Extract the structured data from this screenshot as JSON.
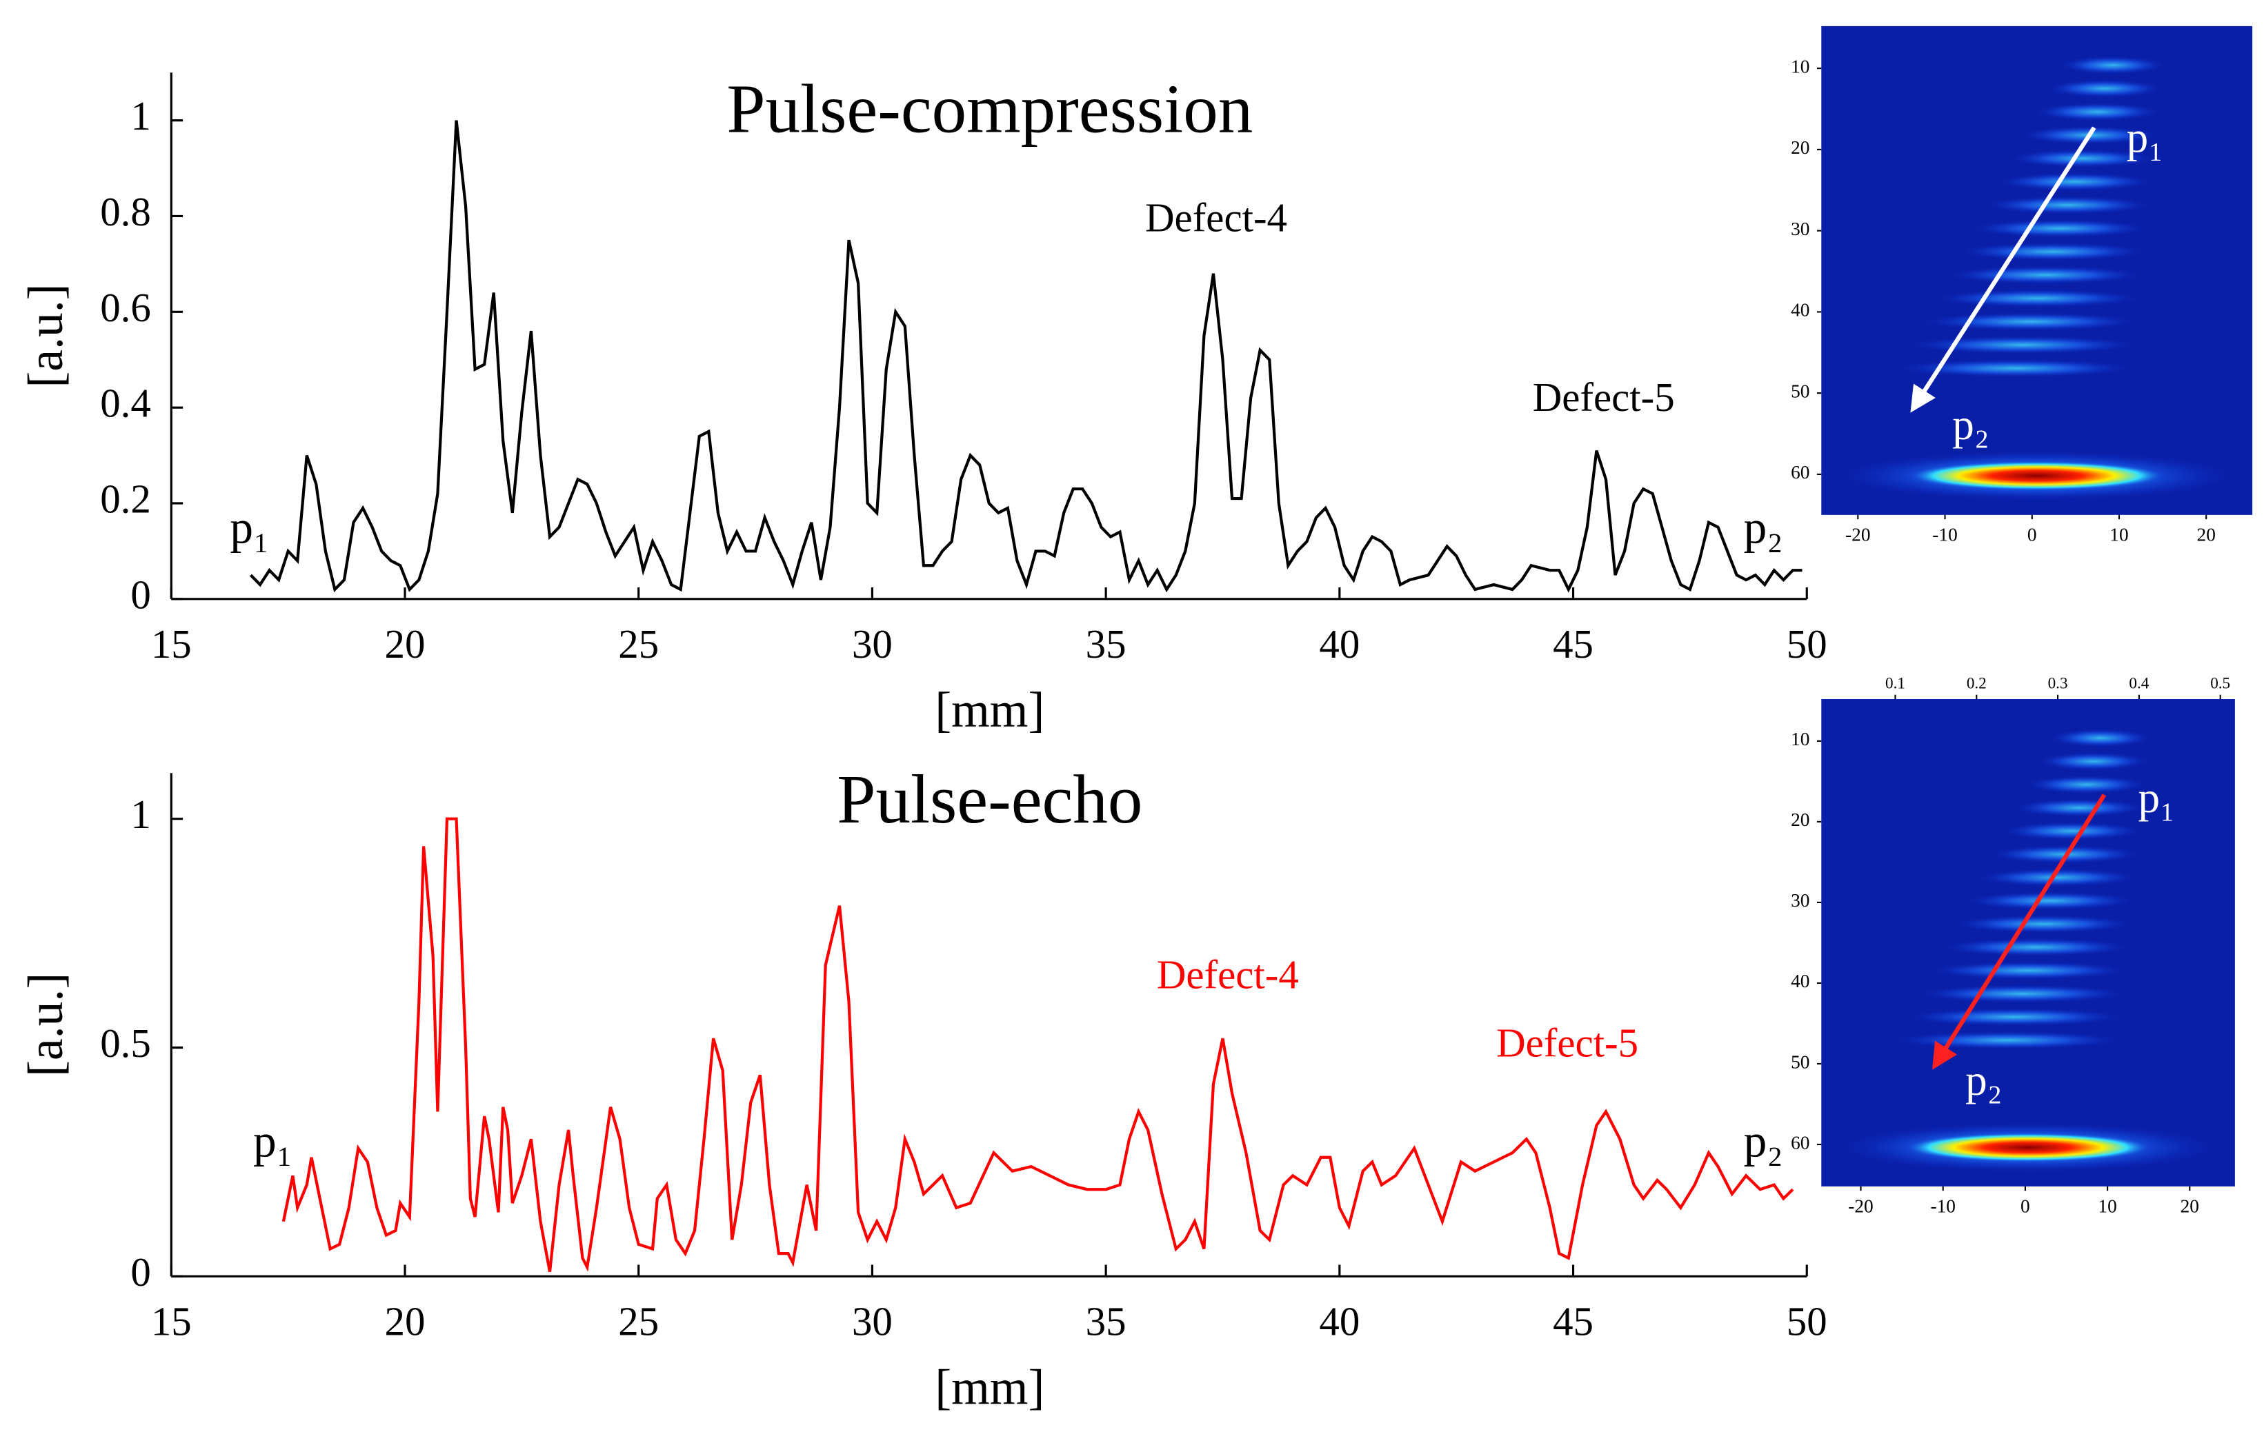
{
  "chart_data": [
    {
      "type": "line",
      "title": "Pulse-compression",
      "x_label": "[mm]",
      "y_label": "[a.u.]",
      "color": "#000000",
      "xlim": [
        15,
        50
      ],
      "xticks": [
        15,
        20,
        25,
        30,
        35,
        40,
        45,
        50
      ],
      "ylim": [
        0,
        1.1
      ],
      "yticks": [
        0,
        0.2,
        0.4,
        0.6,
        0.8,
        1
      ],
      "annotations": [
        "Defect-4",
        "Defect-5",
        "p₁",
        "p₂"
      ],
      "x": [
        16.7,
        16.9,
        17.1,
        17.3,
        17.5,
        17.7,
        17.9,
        18.1,
        18.3,
        18.5,
        18.7,
        18.9,
        19.1,
        19.3,
        19.5,
        19.7,
        19.9,
        20.1,
        20.3,
        20.5,
        20.7,
        20.9,
        21.1,
        21.3,
        21.5,
        21.7,
        21.9,
        22.1,
        22.3,
        22.5,
        22.7,
        22.9,
        23.1,
        23.3,
        23.5,
        23.7,
        23.9,
        24.1,
        24.3,
        24.5,
        24.7,
        24.9,
        25.1,
        25.3,
        25.5,
        25.7,
        25.9,
        26.1,
        26.3,
        26.5,
        26.7,
        26.9,
        27.1,
        27.3,
        27.5,
        27.7,
        27.9,
        28.1,
        28.3,
        28.5,
        28.7,
        28.9,
        29.1,
        29.3,
        29.5,
        29.7,
        29.9,
        30.1,
        30.3,
        30.5,
        30.7,
        30.9,
        31.1,
        31.3,
        31.5,
        31.7,
        31.9,
        32.1,
        32.3,
        32.5,
        32.7,
        32.9,
        33.1,
        33.3,
        33.5,
        33.7,
        33.9,
        34.1,
        34.3,
        34.5,
        34.7,
        34.9,
        35.1,
        35.3,
        35.5,
        35.7,
        35.9,
        36.1,
        36.3,
        36.5,
        36.7,
        36.9,
        37.1,
        37.3,
        37.5,
        37.7,
        37.9,
        38.1,
        38.3,
        38.5,
        38.7,
        38.9,
        39.1,
        39.3,
        39.5,
        39.7,
        39.9,
        40.1,
        40.3,
        40.5,
        40.7,
        40.9,
        41.1,
        41.3,
        41.5,
        41.9,
        42.1,
        42.3,
        42.5,
        42.7,
        42.9,
        43.3,
        43.7,
        43.9,
        44.1,
        44.5,
        44.7,
        44.9,
        45.1,
        45.3,
        45.5,
        45.7,
        45.9,
        46.1,
        46.3,
        46.5,
        46.7,
        46.9,
        47.1,
        47.3,
        47.5,
        47.7,
        47.9,
        48.1,
        48.3,
        48.5,
        48.7,
        48.9,
        49.1,
        49.3,
        49.5,
        49.7,
        49.9
      ],
      "values": [
        0.05,
        0.03,
        0.06,
        0.04,
        0.1,
        0.08,
        0.3,
        0.24,
        0.1,
        0.02,
        0.04,
        0.16,
        0.19,
        0.15,
        0.1,
        0.08,
        0.07,
        0.02,
        0.04,
        0.1,
        0.22,
        0.6,
        1.0,
        0.82,
        0.48,
        0.49,
        0.64,
        0.33,
        0.18,
        0.39,
        0.56,
        0.3,
        0.13,
        0.15,
        0.2,
        0.25,
        0.24,
        0.2,
        0.14,
        0.09,
        0.12,
        0.15,
        0.06,
        0.12,
        0.08,
        0.03,
        0.02,
        0.18,
        0.34,
        0.35,
        0.18,
        0.1,
        0.14,
        0.1,
        0.1,
        0.17,
        0.12,
        0.08,
        0.03,
        0.1,
        0.16,
        0.04,
        0.15,
        0.4,
        0.75,
        0.66,
        0.2,
        0.18,
        0.48,
        0.6,
        0.57,
        0.3,
        0.07,
        0.07,
        0.1,
        0.12,
        0.25,
        0.3,
        0.28,
        0.2,
        0.18,
        0.19,
        0.08,
        0.03,
        0.1,
        0.1,
        0.09,
        0.18,
        0.23,
        0.23,
        0.2,
        0.15,
        0.13,
        0.14,
        0.04,
        0.08,
        0.03,
        0.06,
        0.02,
        0.05,
        0.1,
        0.2,
        0.55,
        0.68,
        0.5,
        0.21,
        0.21,
        0.42,
        0.52,
        0.5,
        0.2,
        0.07,
        0.1,
        0.12,
        0.17,
        0.19,
        0.15,
        0.07,
        0.04,
        0.1,
        0.13,
        0.12,
        0.1,
        0.03,
        0.04,
        0.05,
        0.08,
        0.11,
        0.09,
        0.05,
        0.02,
        0.03,
        0.02,
        0.04,
        0.07,
        0.06,
        0.06,
        0.02,
        0.06,
        0.15,
        0.31,
        0.25,
        0.05,
        0.1,
        0.2,
        0.23,
        0.22,
        0.15,
        0.08,
        0.03,
        0.02,
        0.08,
        0.16,
        0.15,
        0.1,
        0.05,
        0.04,
        0.05,
        0.03,
        0.06,
        0.04,
        0.06,
        0.06
      ],
      "inset": {
        "xlim": [
          -24.2,
          25.3
        ],
        "ylim": [
          4.8,
          65
        ],
        "xticks": [
          -20,
          -10,
          0,
          10,
          20
        ],
        "yticks": [
          10,
          20,
          30,
          40,
          50,
          60
        ],
        "labels": [
          "p₁",
          "p₂"
        ],
        "arrow_color": "#ffffff"
      }
    },
    {
      "type": "line",
      "title": "Pulse-echo",
      "x_label": "[mm]",
      "y_label": "[a.u.]",
      "color": "#ff0000",
      "xlim": [
        15,
        50
      ],
      "xticks": [
        15,
        20,
        25,
        30,
        35,
        40,
        45,
        50
      ],
      "ylim": [
        0,
        1.1
      ],
      "yticks": [
        0,
        0.5,
        1
      ],
      "annotations": [
        "Defect-4",
        "Defect-5",
        "p₁",
        "p₂"
      ],
      "x": [
        17.4,
        17.6,
        17.7,
        17.9,
        18,
        18.2,
        18.4,
        18.6,
        18.8,
        19,
        19.2,
        19.4,
        19.6,
        19.8,
        19.9,
        20.1,
        20.3,
        20.4,
        20.6,
        20.7,
        20.9,
        21.1,
        21.3,
        21.4,
        21.5,
        21.7,
        21.8,
        22,
        22.1,
        22.2,
        22.3,
        22.5,
        22.7,
        22.9,
        23.1,
        23.3,
        23.5,
        23.6,
        23.8,
        23.9,
        24.1,
        24.4,
        24.6,
        24.8,
        25,
        25.3,
        25.4,
        25.6,
        25.8,
        26,
        26.2,
        26.4,
        26.6,
        26.8,
        27,
        27.2,
        27.4,
        27.6,
        27.8,
        28,
        28.2,
        28.3,
        28.6,
        28.8,
        29,
        29.3,
        29.5,
        29.7,
        29.9,
        30.1,
        30.3,
        30.5,
        30.7,
        30.9,
        31.1,
        31.5,
        31.8,
        32.1,
        32.6,
        33,
        33.4,
        33.8,
        34.2,
        34.6,
        35,
        35.3,
        35.5,
        35.7,
        35.9,
        36.2,
        36.5,
        36.7,
        36.9,
        37.1,
        37.3,
        37.5,
        37.7,
        38,
        38.3,
        38.5,
        38.8,
        39,
        39.3,
        39.6,
        39.8,
        40,
        40.2,
        40.5,
        40.7,
        40.9,
        41.2,
        41.6,
        41.9,
        42.2,
        42.6,
        42.9,
        43.3,
        43.7,
        44,
        44.2,
        44.5,
        44.7,
        44.9,
        45.2,
        45.5,
        45.7,
        46,
        46.3,
        46.5,
        46.8,
        47,
        47.3,
        47.6,
        47.9,
        48.1,
        48.4,
        48.7,
        49,
        49.3,
        49.5,
        49.7
      ],
      "values": [
        0.12,
        0.22,
        0.15,
        0.2,
        0.26,
        0.16,
        0.06,
        0.07,
        0.15,
        0.28,
        0.25,
        0.15,
        0.09,
        0.1,
        0.16,
        0.13,
        0.6,
        0.94,
        0.7,
        0.36,
        1.0,
        1.0,
        0.5,
        0.17,
        0.13,
        0.35,
        0.3,
        0.14,
        0.37,
        0.32,
        0.16,
        0.22,
        0.3,
        0.12,
        0.01,
        0.2,
        0.32,
        0.22,
        0.04,
        0.02,
        0.15,
        0.37,
        0.3,
        0.15,
        0.07,
        0.06,
        0.17,
        0.2,
        0.08,
        0.05,
        0.1,
        0.3,
        0.52,
        0.45,
        0.08,
        0.2,
        0.38,
        0.44,
        0.2,
        0.05,
        0.05,
        0.03,
        0.2,
        0.1,
        0.68,
        0.81,
        0.6,
        0.14,
        0.08,
        0.12,
        0.08,
        0.15,
        0.3,
        0.25,
        0.18,
        0.22,
        0.15,
        0.16,
        0.27,
        0.23,
        0.24,
        0.22,
        0.2,
        0.19,
        0.19,
        0.2,
        0.3,
        0.36,
        0.32,
        0.18,
        0.06,
        0.08,
        0.12,
        0.06,
        0.42,
        0.52,
        0.4,
        0.27,
        0.1,
        0.08,
        0.2,
        0.22,
        0.2,
        0.26,
        0.26,
        0.15,
        0.11,
        0.23,
        0.25,
        0.2,
        0.22,
        0.28,
        0.2,
        0.12,
        0.25,
        0.23,
        0.25,
        0.27,
        0.3,
        0.27,
        0.15,
        0.05,
        0.04,
        0.2,
        0.33,
        0.36,
        0.3,
        0.2,
        0.17,
        0.21,
        0.19,
        0.15,
        0.2,
        0.27,
        0.24,
        0.18,
        0.22,
        0.19,
        0.2,
        0.17,
        0.19
      ],
      "inset": {
        "xlim": [
          -24.8,
          25.5
        ],
        "ylim": [
          4.8,
          65.2
        ],
        "xticks": [
          -20,
          -10,
          0,
          10,
          20
        ],
        "yticks": [
          10,
          20,
          30,
          40,
          50,
          60
        ],
        "x2lim": [
          0.009,
          0.518
        ],
        "x2ticks": [
          0.1,
          0.2,
          0.3,
          0.4,
          0.5
        ],
        "labels": [
          "p₁",
          "p₂"
        ],
        "arrow_color": "#ff2020"
      }
    }
  ]
}
